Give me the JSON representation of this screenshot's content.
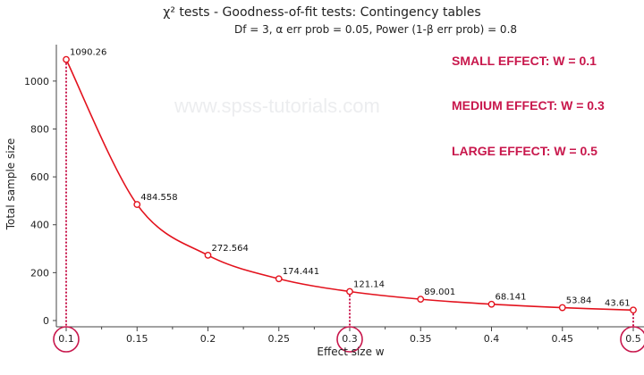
{
  "header": {
    "title": "χ² tests - Goodness-of-fit tests: Contingency tables",
    "subtitle": "Df = 3, α err prob = 0.05, Power (1-β err prob) = 0.8"
  },
  "watermark": "www.spss-tutorials.com",
  "annotations": [
    "SMALL EFFECT: W = 0.1",
    "MEDIUM EFFECT: W = 0.3",
    "LARGE EFFECT: W = 0.5"
  ],
  "colors": {
    "series": "#e3121d",
    "highlight": "#c8174c",
    "axis": "#444444"
  },
  "chart_data": {
    "type": "line",
    "title": "χ² tests - Goodness-of-fit tests: Contingency tables",
    "subtitle": "Df = 3, α err prob = 0.05, Power (1-β err prob) = 0.8",
    "xlabel": "Effect size w",
    "ylabel": "Total sample size",
    "xlim": [
      0.1,
      0.5
    ],
    "ylim": [
      0,
      1100
    ],
    "x_ticks": [
      "0.1",
      "0.15",
      "0.2",
      "0.25",
      "0.3",
      "0.35",
      "0.4",
      "0.45",
      "0.5"
    ],
    "y_ticks": [
      "0",
      "200",
      "400",
      "600",
      "800",
      "1000"
    ],
    "x": [
      0.1,
      0.15,
      0.2,
      0.25,
      0.3,
      0.35,
      0.4,
      0.45,
      0.5
    ],
    "values": [
      1090.26,
      484.558,
      272.564,
      174.441,
      121.14,
      89.001,
      68.141,
      53.84,
      43.61
    ],
    "point_labels": [
      "1090.26",
      "484.558",
      "272.564",
      "174.441",
      "121.14",
      "89.001",
      "68.141",
      "53.84",
      "43.61"
    ],
    "highlighted_x": [
      0.1,
      0.3,
      0.5
    ],
    "grid": false
  }
}
